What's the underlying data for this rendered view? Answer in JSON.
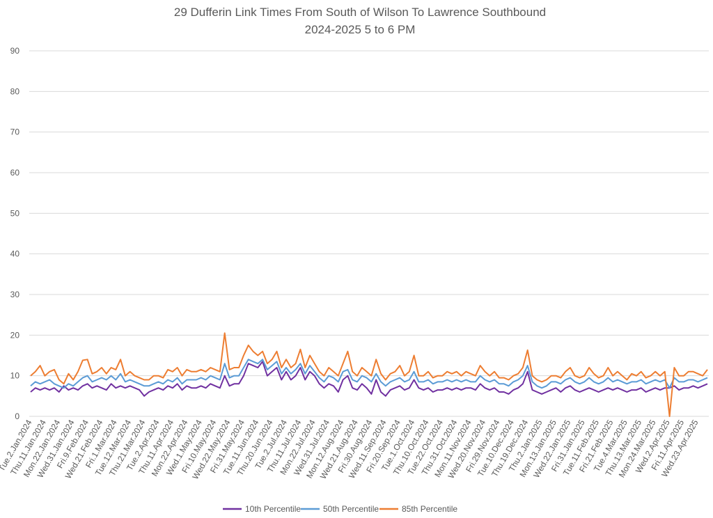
{
  "chart_data": {
    "type": "line",
    "title": "29 Dufferin Link Times From South of Wilson To Lawrence Southbound",
    "subtitle": "2024-2025 5 to 6 PM",
    "xlabel": "",
    "ylabel": "",
    "ylim": [
      0,
      90
    ],
    "yticks": [
      0,
      10,
      20,
      30,
      40,
      50,
      60,
      70,
      80,
      90
    ],
    "grid": true,
    "legend_position": "bottom",
    "x_tick_labels": [
      "Tue.2.Jan.2024",
      "Thu.11.Jan.2024",
      "Mon.22.Jan.2024",
      "Wed.31.Jan.2024",
      "Fri.9.Feb.2024",
      "Wed.21.Feb.2024",
      "Fri.1.Mar.2024",
      "Tue.12.Mar.2024",
      "Thu.21.Mar.2024",
      "Tue.2.Apr.2024",
      "Thu.11.Apr.2024",
      "Mon.22.Apr.2024",
      "Wed.1.May.2024",
      "Fri.10.May.2024",
      "Wed.22.May.2024",
      "Fri.31.May.2024",
      "Tue.11.Jun.2024",
      "Thu.20.Jun.2024",
      "Tue.2.Jul.2024",
      "Thu.11.Jul.2024",
      "Mon.22.Jul.2024",
      "Wed.31.Jul.2024",
      "Mon.12.Aug.2024",
      "Wed.21.Aug.2024",
      "Fri.30.Aug.2024",
      "Wed.11.Sep.2024",
      "Fri.20.Sep.2024",
      "Tue.1.Oct.2024",
      "Thu.10.Oct.2024",
      "Tue.22.Oct.2024",
      "Thu.31.Oct.2024",
      "Mon.11.Nov.2024",
      "Wed.20.Nov.2024",
      "Fri.29.Nov.2024",
      "Tue.10.Dec.2024",
      "Thu.19.Dec.2024",
      "Thu.2.Jan.2025",
      "Mon.13.Jan.2025",
      "Wed.22.Jan.2025",
      "Fri.31.Jan.2025",
      "Tue.11.Feb.2025",
      "Fri.21.Feb.2025",
      "Tue.4.Mar.2025",
      "Thu.13.Mar.2025",
      "Mon.24.Mar.2025",
      "Wed.2.Apr.2025",
      "Fri.11.Apr.2025",
      "Wed.23.Apr.2025"
    ],
    "series": [
      {
        "name": "10th Percentile",
        "color": "#7030A0",
        "values": [
          6,
          7,
          6.5,
          7,
          6.5,
          7,
          6,
          7.5,
          6.5,
          7,
          6.5,
          7.5,
          8,
          7,
          7.5,
          7,
          6.5,
          8,
          7,
          7.5,
          7,
          7.5,
          7,
          6.5,
          5,
          6,
          6.5,
          7,
          6.5,
          7.5,
          7,
          8,
          6.5,
          7.5,
          7,
          7,
          7.5,
          7,
          8,
          7.5,
          7,
          10,
          7.5,
          8,
          8,
          10,
          13,
          12.5,
          12,
          13.5,
          10,
          11,
          12,
          9,
          11,
          9,
          10,
          12,
          9,
          11,
          10,
          8,
          7,
          8,
          7.5,
          6,
          9,
          10,
          7,
          6.5,
          8,
          7,
          5.5,
          9,
          6,
          5,
          6.5,
          7,
          7.5,
          6.5,
          7,
          9,
          7,
          6.5,
          7,
          6,
          6.5,
          6.5,
          7,
          6.5,
          7,
          6.5,
          7,
          7,
          6.5,
          8,
          7,
          6.5,
          7,
          6,
          6,
          5.5,
          6.5,
          7,
          8,
          11,
          6.5,
          6,
          5.5,
          6,
          6.5,
          7,
          6,
          7,
          7.5,
          6.5,
          6,
          6.5,
          7,
          6.5,
          6,
          6.5,
          7,
          6.5,
          7,
          6.5,
          6,
          6.5,
          6.5,
          7,
          6,
          6.5,
          7,
          6.5,
          7,
          7,
          7.5,
          6.5,
          7,
          7,
          7.5,
          7,
          7.5,
          8
        ]
      },
      {
        "name": "50th Percentile",
        "color": "#5B9BD5",
        "values": [
          7.5,
          8.5,
          8,
          8.5,
          9,
          8,
          7.5,
          7,
          8,
          7.5,
          8.5,
          9.5,
          10,
          8.5,
          9,
          9.5,
          9,
          10,
          9,
          10.5,
          8.5,
          9,
          8.5,
          8,
          7.5,
          7.5,
          8,
          8.5,
          8,
          9,
          8.5,
          9.5,
          8,
          9,
          9,
          9,
          9.5,
          9,
          10,
          9.5,
          9,
          13,
          9.5,
          10,
          10,
          12,
          14,
          13.5,
          13,
          14,
          11.5,
          12.5,
          13.5,
          10.5,
          12,
          10.5,
          11.5,
          13,
          10.5,
          12.5,
          11,
          9.5,
          8.5,
          10,
          9.5,
          8.5,
          11,
          11.5,
          9,
          8.5,
          10,
          9.5,
          8.5,
          10.5,
          8.5,
          7.5,
          8.5,
          9,
          9.5,
          8.5,
          9,
          11,
          8.5,
          8.5,
          9,
          8,
          8.5,
          8.5,
          9,
          8.5,
          9,
          8.5,
          9,
          8.5,
          8.5,
          10,
          9,
          8.5,
          9,
          8,
          8,
          7.5,
          8.5,
          9,
          10,
          12.5,
          8.5,
          7.5,
          7,
          7.5,
          8.5,
          8.5,
          8,
          9,
          9.5,
          8.5,
          8,
          8.5,
          9.5,
          8.5,
          8,
          8.5,
          9.5,
          8.5,
          9,
          8.5,
          8,
          8.5,
          8.5,
          9,
          8,
          8.5,
          9,
          8.5,
          9,
          7,
          9.5,
          8.5,
          8.5,
          9,
          9,
          8.5,
          9,
          9.5
        ]
      },
      {
        "name": "85th Percentile",
        "color": "#ED7D31",
        "values": [
          10,
          11,
          12.5,
          10,
          11,
          11.5,
          9,
          8,
          10.5,
          9,
          11,
          13.8,
          14,
          10.5,
          11,
          12,
          10.5,
          12,
          11.5,
          14,
          10,
          11,
          10,
          9.5,
          9,
          9,
          10,
          10,
          9.5,
          11.5,
          11,
          12,
          10,
          11.5,
          11,
          11,
          11.5,
          11,
          12,
          11.5,
          11,
          20.5,
          11.5,
          12,
          12,
          15,
          17.5,
          16,
          15,
          16,
          13,
          14,
          16,
          12,
          14,
          12,
          13,
          16.5,
          12,
          15,
          13,
          11,
          10,
          12,
          11,
          10,
          13,
          16,
          11,
          10,
          12,
          11,
          10,
          14,
          10.5,
          9,
          10.5,
          11,
          12.5,
          10,
          11,
          15,
          10,
          10,
          11,
          9.5,
          10,
          10,
          11,
          10.5,
          11,
          10,
          11,
          10.5,
          10,
          12.5,
          11,
          10,
          11,
          9.5,
          9.5,
          9,
          10,
          10.5,
          12,
          16.3,
          10,
          9,
          8.5,
          9,
          10,
          10,
          9.5,
          11,
          12,
          10,
          9.5,
          10,
          12,
          10.5,
          9.5,
          10,
          12,
          10,
          11,
          10,
          9,
          10.5,
          10,
          11,
          9.5,
          10,
          11,
          10,
          11,
          0,
          12,
          10,
          10,
          11,
          11,
          10.5,
          10,
          11.5
        ]
      }
    ]
  }
}
